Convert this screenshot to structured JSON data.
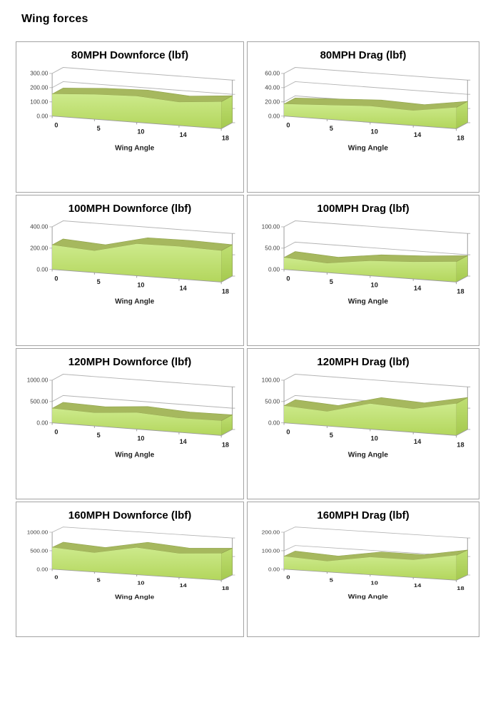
{
  "page": {
    "title": "Wing forces"
  },
  "colors": {
    "area_gradient_top": "#cdea8c",
    "area_gradient_bottom": "#b3d65c",
    "ribbon_top_surface": "#a6b85e",
    "ribbon_edge": "#90a24c",
    "side_face_top": "#bfdf73",
    "side_face_bottom": "#a5c94e",
    "gridline": "#b3b3b3",
    "axis_line": "#9c9c9c",
    "ytick_text": "#3f3f3f",
    "xtick_text": "#1f1f1f",
    "panel_border": "#a3a3a3"
  },
  "chart_data": [
    {
      "type": "area",
      "title": "80MPH Downforce (lbf)",
      "xlabel": "Wing Angle",
      "categories": [
        "0",
        "5",
        "10",
        "14",
        "18"
      ],
      "values": [
        155,
        175,
        185,
        165,
        190
      ],
      "ylim": [
        0,
        300
      ],
      "ytick_values": [
        0,
        100,
        200,
        300
      ],
      "ytick_labels": [
        "0.00",
        "100.00",
        "200.00",
        "300.00"
      ],
      "grid": true,
      "legend": "none",
      "projection": "3d"
    },
    {
      "type": "area",
      "title": "80MPH Drag (lbf)",
      "xlabel": "Wing Angle",
      "categories": [
        "0",
        "5",
        "10",
        "14",
        "18"
      ],
      "values": [
        17,
        20,
        23,
        21,
        30
      ],
      "ylim": [
        0,
        60
      ],
      "ytick_values": [
        0,
        20,
        40,
        60
      ],
      "ytick_labels": [
        "0.00",
        "20.00",
        "40.00",
        "60.00"
      ],
      "grid": true,
      "legend": "none",
      "projection": "3d"
    },
    {
      "type": "area",
      "title": "100MPH Downforce (lbf)",
      "xlabel": "Wing Angle",
      "categories": [
        "0",
        "5",
        "10",
        "14",
        "18"
      ],
      "values": [
        230,
        205,
        300,
        305,
        295
      ],
      "ylim": [
        0,
        400
      ],
      "ytick_values": [
        0,
        200,
        400
      ],
      "ytick_labels": [
        "0.00",
        "200.00",
        "400.00"
      ],
      "grid": true,
      "legend": "none",
      "projection": "3d"
    },
    {
      "type": "area",
      "title": "100MPH Drag (lbf)",
      "xlabel": "Wing Angle",
      "categories": [
        "0",
        "5",
        "10",
        "14",
        "18"
      ],
      "values": [
        28,
        22,
        35,
        40,
        48
      ],
      "ylim": [
        0,
        100
      ],
      "ytick_values": [
        0,
        50,
        100
      ],
      "ytick_labels": [
        "0.00",
        "50.00",
        "100.00"
      ],
      "grid": true,
      "legend": "none",
      "projection": "3d"
    },
    {
      "type": "area",
      "title": "120MPH Downforce (lbf)",
      "xlabel": "Wing Angle",
      "categories": [
        "0",
        "5",
        "10",
        "14",
        "18"
      ],
      "values": [
        340,
        310,
        390,
        335,
        345
      ],
      "ylim": [
        0,
        1000
      ],
      "ytick_values": [
        0,
        500,
        1000
      ],
      "ytick_labels": [
        "0.00",
        "500.00",
        "1000.00"
      ],
      "grid": true,
      "legend": "none",
      "projection": "3d"
    },
    {
      "type": "area",
      "title": "120MPH Drag (lbf)",
      "xlabel": "Wing Angle",
      "categories": [
        "0",
        "5",
        "10",
        "14",
        "18"
      ],
      "values": [
        40,
        34,
        60,
        55,
        75
      ],
      "ylim": [
        0,
        100
      ],
      "ytick_values": [
        0,
        50,
        100
      ],
      "ytick_labels": [
        "0.00",
        "50.00",
        "100.00"
      ],
      "grid": true,
      "legend": "none",
      "projection": "3d"
    },
    {
      "type": "area",
      "title": "160MPH Downforce (lbf)",
      "xlabel": "Wing Angle",
      "categories": [
        "0",
        "5",
        "10",
        "14",
        "18"
      ],
      "values": [
        590,
        520,
        735,
        650,
        725
      ],
      "ylim": [
        0,
        1000
      ],
      "ytick_values": [
        0,
        500,
        1000
      ],
      "ytick_labels": [
        "0.00",
        "500.00",
        "1000.00"
      ],
      "grid": true,
      "legend": "none",
      "projection": "3d"
    },
    {
      "type": "area",
      "title": "160MPH Drag (lbf)",
      "xlabel": "Wing Angle",
      "categories": [
        "0",
        "5",
        "10",
        "14",
        "18"
      ],
      "values": [
        70,
        58,
        95,
        95,
        135
      ],
      "ylim": [
        0,
        200
      ],
      "ytick_values": [
        0,
        100,
        200
      ],
      "ytick_labels": [
        "0.00",
        "100.00",
        "200.00"
      ],
      "grid": true,
      "legend": "none",
      "projection": "3d"
    }
  ]
}
